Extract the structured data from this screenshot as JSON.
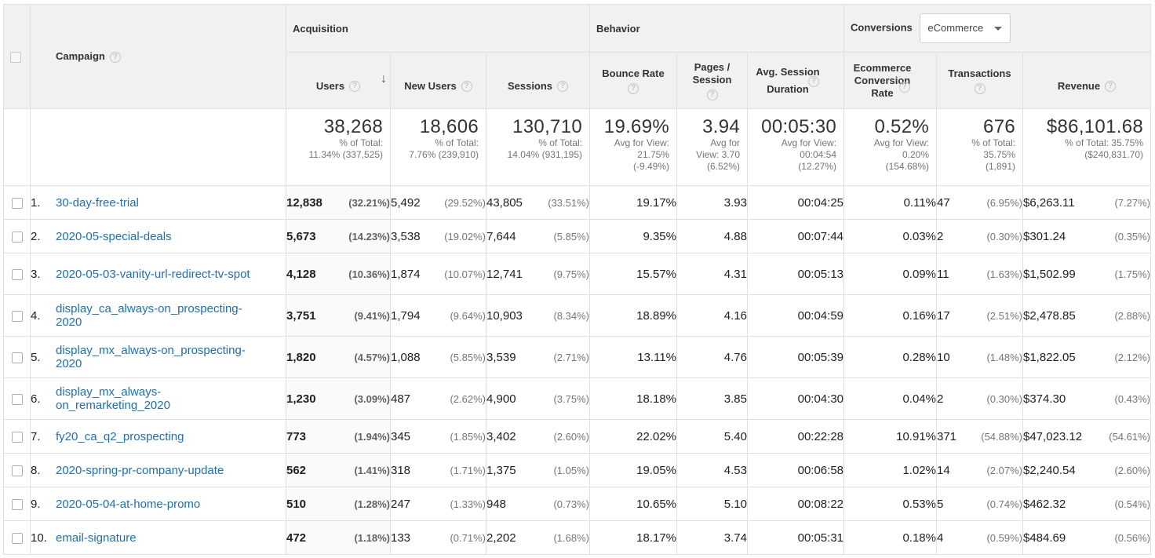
{
  "header": {
    "campaign": "Campaign",
    "groups": {
      "acquisition": "Acquisition",
      "behavior": "Behavior",
      "conversions": "Conversions"
    },
    "conversions_select": "eCommerce",
    "metrics": {
      "users": "Users",
      "new_users": "New Users",
      "sessions": "Sessions",
      "bounce_rate": "Bounce Rate",
      "pages_session": "Pages / Session",
      "avg_session_duration": "Avg. Session Duration",
      "ecom_conv_rate": "Ecommerce Conversion Rate",
      "transactions": "Transactions",
      "revenue": "Revenue"
    }
  },
  "totals": {
    "users": {
      "value": "38,268",
      "l1": "% of Total:",
      "l2": "11.34% (337,525)",
      "l3": ""
    },
    "new_users": {
      "value": "18,606",
      "l1": "% of Total:",
      "l2": "7.76% (239,910)",
      "l3": ""
    },
    "sessions": {
      "value": "130,710",
      "l1": "% of Total:",
      "l2": "14.04% (931,195)",
      "l3": ""
    },
    "bounce_rate": {
      "value": "19.69%",
      "l1": "Avg for View:",
      "l2": "21.75%",
      "l3": "(-9.49%)"
    },
    "pages_session": {
      "value": "3.94",
      "l1": "Avg for",
      "l2": "View: 3.70",
      "l3": "(6.52%)"
    },
    "avg_session_duration": {
      "value": "00:05:30",
      "l1": "Avg for View:",
      "l2": "00:04:54",
      "l3": "(12.27%)"
    },
    "ecom_conv_rate": {
      "value": "0.52%",
      "l1": "Avg for View:",
      "l2": "0.20%",
      "l3": "(154.68%)"
    },
    "transactions": {
      "value": "676",
      "l1": "% of Total:",
      "l2": "35.75%",
      "l3": "(1,891)"
    },
    "revenue": {
      "value": "$86,101.68",
      "l1": "% of Total: 35.75%",
      "l2": "($240,831.70)",
      "l3": ""
    }
  },
  "rows": [
    {
      "rank": "1.",
      "campaign": "30-day-free-trial",
      "users": "12,838",
      "users_pct": "(32.21%)",
      "new_users": "5,492",
      "new_users_pct": "(29.52%)",
      "sessions": "43,805",
      "sessions_pct": "(33.51%)",
      "bounce_rate": "19.17%",
      "pages_session": "3.93",
      "avg_session_duration": "00:04:25",
      "ecom_conv_rate": "0.11%",
      "transactions": "47",
      "transactions_pct": "(6.95%)",
      "revenue": "$6,263.11",
      "revenue_pct": "(7.27%)"
    },
    {
      "rank": "2.",
      "campaign": "2020-05-special-deals",
      "users": "5,673",
      "users_pct": "(14.23%)",
      "new_users": "3,538",
      "new_users_pct": "(19.02%)",
      "sessions": "7,644",
      "sessions_pct": "(5.85%)",
      "bounce_rate": "9.35%",
      "pages_session": "4.88",
      "avg_session_duration": "00:07:44",
      "ecom_conv_rate": "0.03%",
      "transactions": "2",
      "transactions_pct": "(0.30%)",
      "revenue": "$301.24",
      "revenue_pct": "(0.35%)"
    },
    {
      "rank": "3.",
      "campaign": "2020-05-03-vanity-url-redirect-tv-spot",
      "users": "4,128",
      "users_pct": "(10.36%)",
      "new_users": "1,874",
      "new_users_pct": "(10.07%)",
      "sessions": "12,741",
      "sessions_pct": "(9.75%)",
      "bounce_rate": "15.57%",
      "pages_session": "4.31",
      "avg_session_duration": "00:05:13",
      "ecom_conv_rate": "0.09%",
      "transactions": "11",
      "transactions_pct": "(1.63%)",
      "revenue": "$1,502.99",
      "revenue_pct": "(1.75%)"
    },
    {
      "rank": "4.",
      "campaign": "display_ca_always-on_prospecting-2020",
      "users": "3,751",
      "users_pct": "(9.41%)",
      "new_users": "1,794",
      "new_users_pct": "(9.64%)",
      "sessions": "10,903",
      "sessions_pct": "(8.34%)",
      "bounce_rate": "18.89%",
      "pages_session": "4.16",
      "avg_session_duration": "00:04:59",
      "ecom_conv_rate": "0.16%",
      "transactions": "17",
      "transactions_pct": "(2.51%)",
      "revenue": "$2,478.85",
      "revenue_pct": "(2.88%)"
    },
    {
      "rank": "5.",
      "campaign": "display_mx_always-on_prospecting-2020",
      "users": "1,820",
      "users_pct": "(4.57%)",
      "new_users": "1,088",
      "new_users_pct": "(5.85%)",
      "sessions": "3,539",
      "sessions_pct": "(2.71%)",
      "bounce_rate": "13.11%",
      "pages_session": "4.76",
      "avg_session_duration": "00:05:39",
      "ecom_conv_rate": "0.28%",
      "transactions": "10",
      "transactions_pct": "(1.48%)",
      "revenue": "$1,822.05",
      "revenue_pct": "(2.12%)"
    },
    {
      "rank": "6.",
      "campaign": "display_mx_always-on_remarketing_2020",
      "users": "1,230",
      "users_pct": "(3.09%)",
      "new_users": "487",
      "new_users_pct": "(2.62%)",
      "sessions": "4,900",
      "sessions_pct": "(3.75%)",
      "bounce_rate": "18.18%",
      "pages_session": "3.85",
      "avg_session_duration": "00:04:30",
      "ecom_conv_rate": "0.04%",
      "transactions": "2",
      "transactions_pct": "(0.30%)",
      "revenue": "$374.30",
      "revenue_pct": "(0.43%)"
    },
    {
      "rank": "7.",
      "campaign": "fy20_ca_q2_prospecting",
      "users": "773",
      "users_pct": "(1.94%)",
      "new_users": "345",
      "new_users_pct": "(1.85%)",
      "sessions": "3,402",
      "sessions_pct": "(2.60%)",
      "bounce_rate": "22.02%",
      "pages_session": "5.40",
      "avg_session_duration": "00:22:28",
      "ecom_conv_rate": "10.91%",
      "transactions": "371",
      "transactions_pct": "(54.88%)",
      "revenue": "$47,023.12",
      "revenue_pct": "(54.61%)"
    },
    {
      "rank": "8.",
      "campaign": "2020-spring-pr-company-update",
      "users": "562",
      "users_pct": "(1.41%)",
      "new_users": "318",
      "new_users_pct": "(1.71%)",
      "sessions": "1,375",
      "sessions_pct": "(1.05%)",
      "bounce_rate": "19.05%",
      "pages_session": "4.53",
      "avg_session_duration": "00:06:58",
      "ecom_conv_rate": "1.02%",
      "transactions": "14",
      "transactions_pct": "(2.07%)",
      "revenue": "$2,240.54",
      "revenue_pct": "(2.60%)"
    },
    {
      "rank": "9.",
      "campaign": "2020-05-04-at-home-promo",
      "users": "510",
      "users_pct": "(1.28%)",
      "new_users": "247",
      "new_users_pct": "(1.33%)",
      "sessions": "948",
      "sessions_pct": "(0.73%)",
      "bounce_rate": "10.65%",
      "pages_session": "5.10",
      "avg_session_duration": "00:08:22",
      "ecom_conv_rate": "0.53%",
      "transactions": "5",
      "transactions_pct": "(0.74%)",
      "revenue": "$462.32",
      "revenue_pct": "(0.54%)"
    },
    {
      "rank": "10.",
      "campaign": "email-signature",
      "users": "472",
      "users_pct": "(1.18%)",
      "new_users": "133",
      "new_users_pct": "(0.71%)",
      "sessions": "2,202",
      "sessions_pct": "(1.68%)",
      "bounce_rate": "18.17%",
      "pages_session": "3.74",
      "avg_session_duration": "00:05:31",
      "ecom_conv_rate": "0.18%",
      "transactions": "4",
      "transactions_pct": "(0.59%)",
      "revenue": "$484.69",
      "revenue_pct": "(0.56%)"
    }
  ]
}
